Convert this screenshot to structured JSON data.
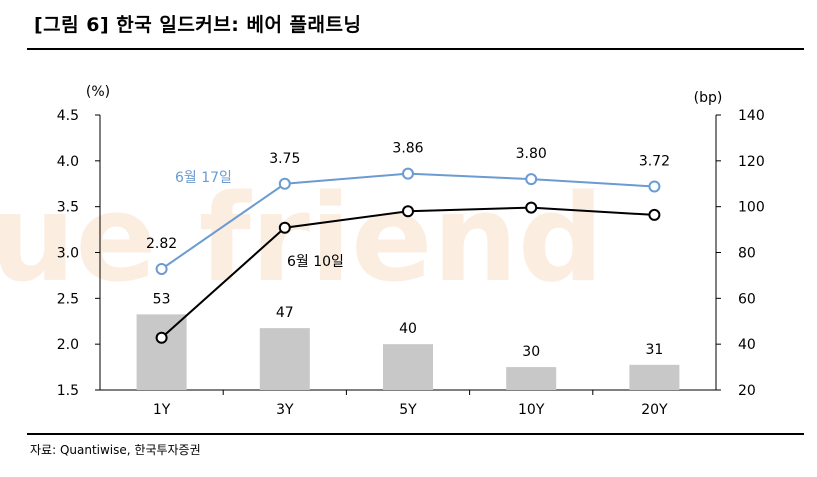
{
  "header": {
    "title": "[그림 6] 한국 일드커브: 베어 플래트닝"
  },
  "footer": {
    "source": "자료: Quantiwise,  한국투자증권"
  },
  "chart_data": {
    "type": "bar+line",
    "categories": [
      "1Y",
      "3Y",
      "5Y",
      "10Y",
      "20Y"
    ],
    "left_axis": {
      "unit": "(%)",
      "range": [
        1.5,
        4.5
      ],
      "ticks": [
        "1.5",
        "2.0",
        "2.5",
        "3.0",
        "3.5",
        "4.0",
        "4.5"
      ]
    },
    "right_axis": {
      "unit": "(bp)",
      "range": [
        20,
        140
      ],
      "ticks": [
        "20",
        "40",
        "60",
        "80",
        "100",
        "120",
        "140"
      ]
    },
    "bars": {
      "axis": "right",
      "values": [
        53,
        47,
        40,
        30,
        31
      ],
      "labels": [
        "53",
        "47",
        "40",
        "30",
        "31"
      ]
    },
    "series": [
      {
        "name": "6월 17일",
        "axis": "left",
        "values": [
          2.82,
          3.75,
          3.86,
          3.8,
          3.72
        ],
        "labels": [
          "2.82",
          "3.75",
          "3.86",
          "3.80",
          "3.72"
        ]
      },
      {
        "name": "6월 10일",
        "axis": "left",
        "values": [
          2.07,
          3.27,
          3.45,
          3.49,
          3.41
        ]
      }
    ],
    "grid": false
  },
  "colors": {
    "bar": "#c8c8c8",
    "jun17": "#6b9bd1",
    "jun10": "#000000",
    "watermark": "#fbeee0"
  }
}
